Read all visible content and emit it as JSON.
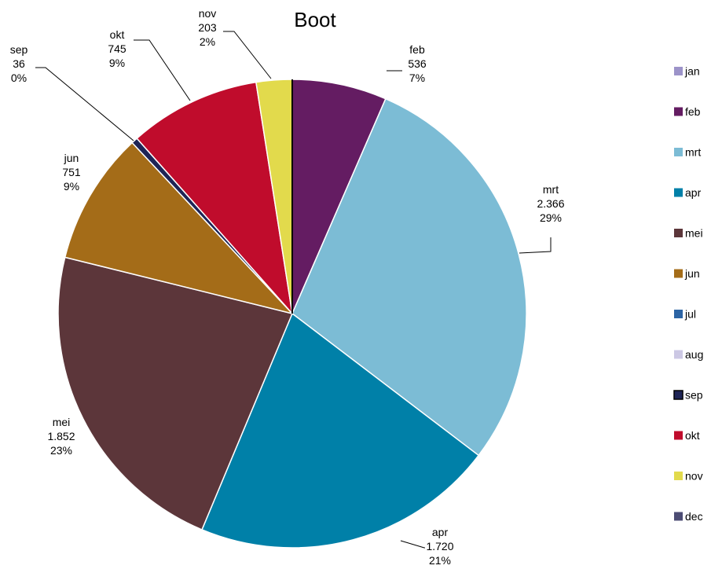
{
  "chart_data": {
    "type": "pie",
    "title": "Boot",
    "start_angle_deg": 0,
    "direction": "clockwise",
    "legend_position": "right",
    "slices": [
      {
        "label": "jan",
        "value": 0,
        "display_value": "",
        "percent_label": "",
        "color": "#9c93c9",
        "show_label": false
      },
      {
        "label": "feb",
        "value": 536,
        "display_value": "536",
        "percent_label": "7%",
        "color": "#641c62",
        "show_label": true
      },
      {
        "label": "mrt",
        "value": 2366,
        "display_value": "2.366",
        "percent_label": "29%",
        "color": "#7cbcd5",
        "show_label": true
      },
      {
        "label": "apr",
        "value": 1720,
        "display_value": "1.720",
        "percent_label": "21%",
        "color": "#0080a8",
        "show_label": true
      },
      {
        "label": "mei",
        "value": 1852,
        "display_value": "1.852",
        "percent_label": "23%",
        "color": "#5c363a",
        "show_label": true
      },
      {
        "label": "jun",
        "value": 751,
        "display_value": "751",
        "percent_label": "9%",
        "color": "#a46c18",
        "show_label": true
      },
      {
        "label": "jul",
        "value": 0,
        "display_value": "",
        "percent_label": "",
        "color": "#2c64a4",
        "show_label": false
      },
      {
        "label": "aug",
        "value": 0,
        "display_value": "",
        "percent_label": "",
        "color": "#ccc8e4",
        "show_label": false
      },
      {
        "label": "sep",
        "value": 36,
        "display_value": "36",
        "percent_label": "0%",
        "color": "#1e2456",
        "show_label": true
      },
      {
        "label": "okt",
        "value": 745,
        "display_value": "745",
        "percent_label": "9%",
        "color": "#c00c2c",
        "show_label": true
      },
      {
        "label": "nov",
        "value": 203,
        "display_value": "203",
        "percent_label": "2%",
        "color": "#e2da4c",
        "show_label": true
      },
      {
        "label": "dec",
        "value": 0,
        "display_value": "",
        "percent_label": "",
        "color": "#4c4c74",
        "show_label": false
      }
    ]
  }
}
